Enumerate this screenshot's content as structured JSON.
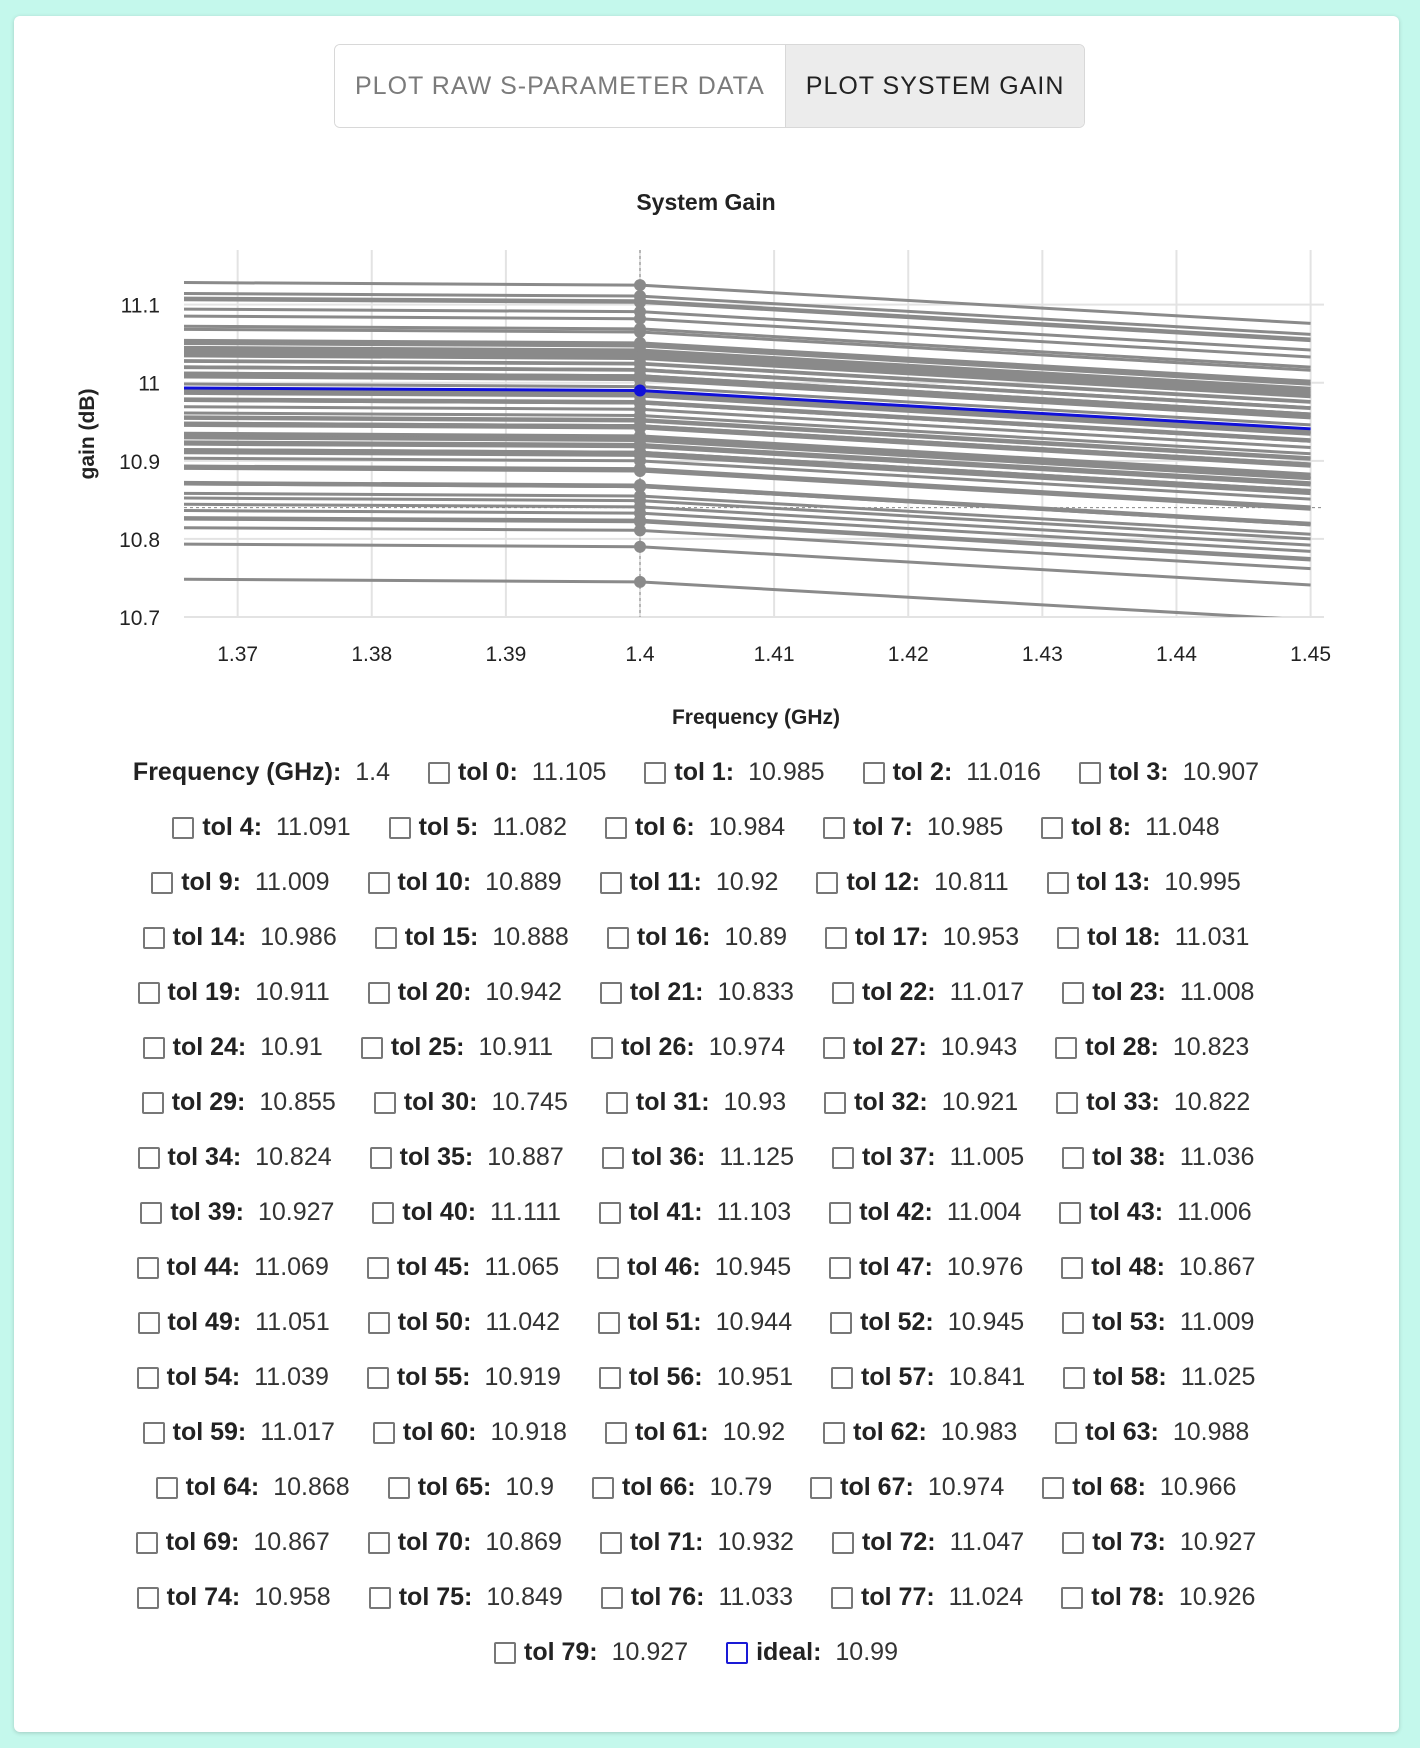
{
  "toolbar": {
    "raw_label": "PLOT RAW S-PARAMETER DATA",
    "gain_label": "PLOT SYSTEM GAIN"
  },
  "chart_data": {
    "type": "line",
    "title": "System Gain",
    "xlabel": "Frequency (GHz)",
    "ylabel": "gain (dB)",
    "xlim": [
      1.366,
      1.451
    ],
    "ylim": [
      10.7,
      11.17
    ],
    "xticks": [
      1.37,
      1.38,
      1.39,
      1.4,
      1.41,
      1.42,
      1.43,
      1.44,
      1.45
    ],
    "yticks": [
      10.7,
      10.8,
      10.9,
      11.0,
      11.1
    ],
    "xtick_labels": [
      "1.37",
      "1.38",
      "1.39",
      "1.4",
      "1.41",
      "1.42",
      "1.43",
      "1.44",
      "1.45"
    ],
    "ytick_labels": [
      "10.7",
      "10.8",
      "10.9",
      "11",
      "11.1"
    ],
    "grid": true,
    "x_points": [
      1.35,
      1.4,
      1.45
    ],
    "slope_left": 0.0049,
    "slope_right": 0.0098,
    "series": [
      {
        "name": "tol 0",
        "value": 11.105
      },
      {
        "name": "tol 1",
        "value": 10.985
      },
      {
        "name": "tol 2",
        "value": 11.016
      },
      {
        "name": "tol 3",
        "value": 10.907
      },
      {
        "name": "tol 4",
        "value": 11.091
      },
      {
        "name": "tol 5",
        "value": 11.082
      },
      {
        "name": "tol 6",
        "value": 10.984
      },
      {
        "name": "tol 7",
        "value": 10.985
      },
      {
        "name": "tol 8",
        "value": 11.048
      },
      {
        "name": "tol 9",
        "value": 11.009
      },
      {
        "name": "tol 10",
        "value": 10.889
      },
      {
        "name": "tol 11",
        "value": 10.92
      },
      {
        "name": "tol 12",
        "value": 10.811
      },
      {
        "name": "tol 13",
        "value": 10.995
      },
      {
        "name": "tol 14",
        "value": 10.986
      },
      {
        "name": "tol 15",
        "value": 10.888
      },
      {
        "name": "tol 16",
        "value": 10.89
      },
      {
        "name": "tol 17",
        "value": 10.953
      },
      {
        "name": "tol 18",
        "value": 11.031
      },
      {
        "name": "tol 19",
        "value": 10.911
      },
      {
        "name": "tol 20",
        "value": 10.942
      },
      {
        "name": "tol 21",
        "value": 10.833
      },
      {
        "name": "tol 22",
        "value": 11.017
      },
      {
        "name": "tol 23",
        "value": 11.008
      },
      {
        "name": "tol 24",
        "value": 10.91
      },
      {
        "name": "tol 25",
        "value": 10.911
      },
      {
        "name": "tol 26",
        "value": 10.974
      },
      {
        "name": "tol 27",
        "value": 10.943
      },
      {
        "name": "tol 28",
        "value": 10.823
      },
      {
        "name": "tol 29",
        "value": 10.855
      },
      {
        "name": "tol 30",
        "value": 10.745
      },
      {
        "name": "tol 31",
        "value": 10.93
      },
      {
        "name": "tol 32",
        "value": 10.921
      },
      {
        "name": "tol 33",
        "value": 10.822
      },
      {
        "name": "tol 34",
        "value": 10.824
      },
      {
        "name": "tol 35",
        "value": 10.887
      },
      {
        "name": "tol 36",
        "value": 11.125
      },
      {
        "name": "tol 37",
        "value": 11.005
      },
      {
        "name": "tol 38",
        "value": 11.036
      },
      {
        "name": "tol 39",
        "value": 10.927
      },
      {
        "name": "tol 40",
        "value": 11.111
      },
      {
        "name": "tol 41",
        "value": 11.103
      },
      {
        "name": "tol 42",
        "value": 11.004
      },
      {
        "name": "tol 43",
        "value": 11.006
      },
      {
        "name": "tol 44",
        "value": 11.069
      },
      {
        "name": "tol 45",
        "value": 11.065
      },
      {
        "name": "tol 46",
        "value": 10.945
      },
      {
        "name": "tol 47",
        "value": 10.976
      },
      {
        "name": "tol 48",
        "value": 10.867
      },
      {
        "name": "tol 49",
        "value": 11.051
      },
      {
        "name": "tol 50",
        "value": 11.042
      },
      {
        "name": "tol 51",
        "value": 10.944
      },
      {
        "name": "tol 52",
        "value": 10.945
      },
      {
        "name": "tol 53",
        "value": 11.009
      },
      {
        "name": "tol 54",
        "value": 11.039
      },
      {
        "name": "tol 55",
        "value": 10.919
      },
      {
        "name": "tol 56",
        "value": 10.951
      },
      {
        "name": "tol 57",
        "value": 10.841
      },
      {
        "name": "tol 58",
        "value": 11.025
      },
      {
        "name": "tol 59",
        "value": 11.017
      },
      {
        "name": "tol 60",
        "value": 10.918
      },
      {
        "name": "tol 61",
        "value": 10.92
      },
      {
        "name": "tol 62",
        "value": 10.983
      },
      {
        "name": "tol 63",
        "value": 10.988
      },
      {
        "name": "tol 64",
        "value": 10.868
      },
      {
        "name": "tol 65",
        "value": 10.9
      },
      {
        "name": "tol 66",
        "value": 10.79
      },
      {
        "name": "tol 67",
        "value": 10.974
      },
      {
        "name": "tol 68",
        "value": 10.966
      },
      {
        "name": "tol 69",
        "value": 10.867
      },
      {
        "name": "tol 70",
        "value": 10.869
      },
      {
        "name": "tol 71",
        "value": 10.932
      },
      {
        "name": "tol 72",
        "value": 11.047
      },
      {
        "name": "tol 73",
        "value": 10.927
      },
      {
        "name": "tol 74",
        "value": 10.958
      },
      {
        "name": "tol 75",
        "value": 10.849
      },
      {
        "name": "tol 76",
        "value": 11.033
      },
      {
        "name": "tol 77",
        "value": 11.024
      },
      {
        "name": "tol 78",
        "value": 10.926
      },
      {
        "name": "tol 79",
        "value": 10.927
      },
      {
        "name": "ideal",
        "value": 10.99
      }
    ],
    "colors": {
      "tol": "#8a8a8a",
      "ideal": "#1010d8"
    },
    "hover_x": 1.4,
    "hover_y": 10.84
  },
  "readout": {
    "freq_label": "Frequency (GHz):",
    "freq_value": "1.4"
  }
}
